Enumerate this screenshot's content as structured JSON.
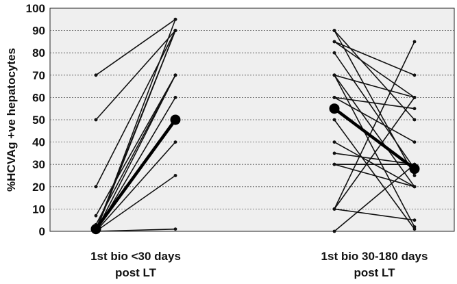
{
  "chart_data": {
    "type": "line",
    "ylabel": "%HCVAg +ve hepatocytes",
    "ylim": [
      0,
      100
    ],
    "yticks": [
      0,
      10,
      20,
      30,
      40,
      50,
      60,
      70,
      80,
      90,
      100
    ],
    "grid": "horizontal dotted",
    "panels": [
      {
        "name_lines": [
          "1st bio <30 days",
          "post LT"
        ],
        "series": [
          {
            "values": [
              0,
              95
            ]
          },
          {
            "values": [
              0,
              90
            ]
          },
          {
            "values": [
              0,
              70
            ]
          },
          {
            "values": [
              0,
              60
            ]
          },
          {
            "values": [
              0,
              40
            ]
          },
          {
            "values": [
              0,
              25
            ]
          },
          {
            "values": [
              0,
              1
            ]
          },
          {
            "values": [
              1,
              90
            ]
          },
          {
            "values": [
              3,
              70
            ]
          },
          {
            "values": [
              7,
              70
            ]
          },
          {
            "values": [
              20,
              90
            ]
          },
          {
            "values": [
              50,
              90
            ]
          },
          {
            "values": [
              70,
              95
            ]
          }
        ],
        "mean": [
          1,
          50
        ]
      },
      {
        "name_lines": [
          "1st bio 30-180 days",
          "post LT"
        ],
        "series": [
          {
            "values": [
              90,
              50
            ]
          },
          {
            "values": [
              90,
              25
            ]
          },
          {
            "values": [
              85,
              70
            ]
          },
          {
            "values": [
              85,
              60
            ]
          },
          {
            "values": [
              80,
              28
            ]
          },
          {
            "values": [
              70,
              60
            ]
          },
          {
            "values": [
              70,
              20
            ]
          },
          {
            "values": [
              70,
              2
            ]
          },
          {
            "values": [
              60,
              55
            ]
          },
          {
            "values": [
              60,
              40
            ]
          },
          {
            "values": [
              50,
              1
            ]
          },
          {
            "values": [
              40,
              20
            ]
          },
          {
            "values": [
              35,
              30
            ]
          },
          {
            "values": [
              30,
              30
            ]
          },
          {
            "values": [
              30,
              20
            ]
          },
          {
            "values": [
              10,
              85
            ]
          },
          {
            "values": [
              10,
              60
            ]
          },
          {
            "values": [
              10,
              5
            ]
          },
          {
            "values": [
              0,
              30
            ]
          }
        ],
        "mean": [
          55,
          28
        ]
      }
    ]
  }
}
